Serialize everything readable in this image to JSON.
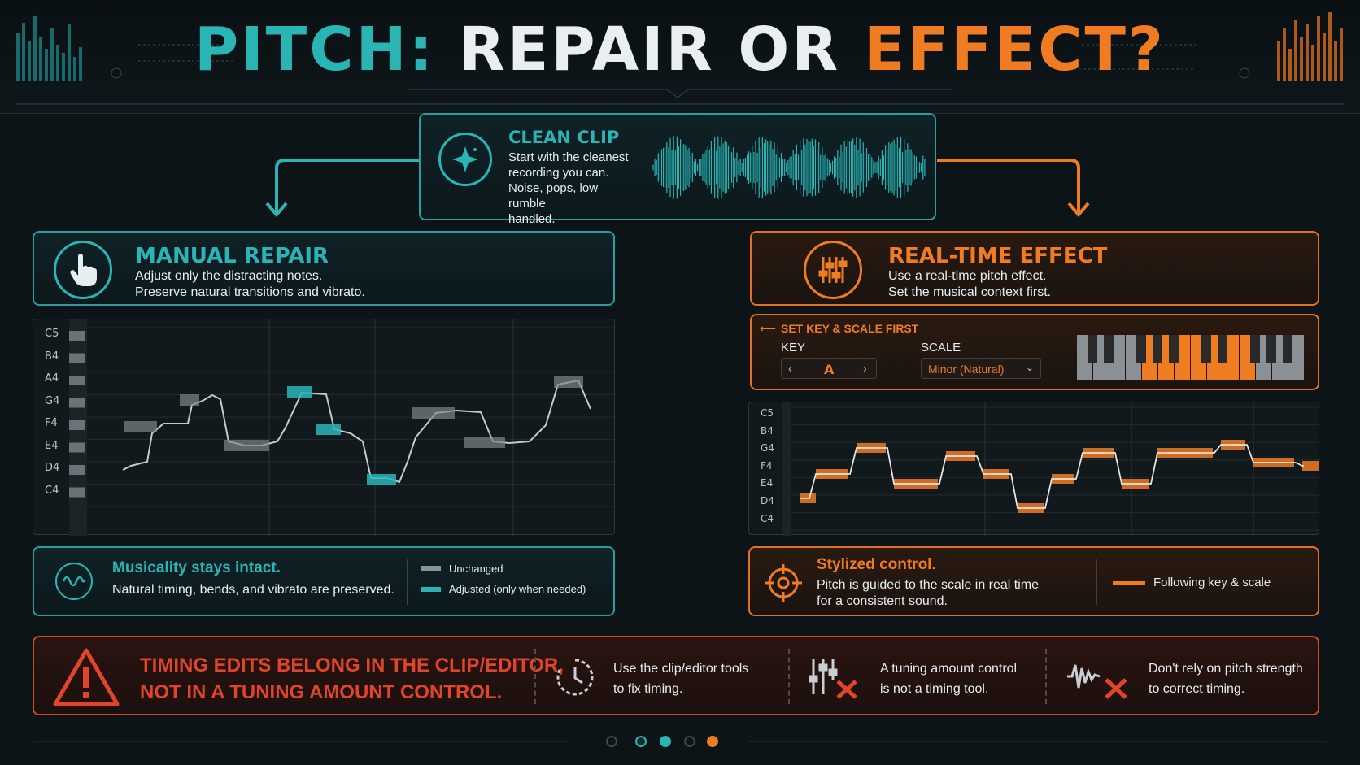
{
  "title": {
    "part1": "PITCH:",
    "part2": "REPAIR OR",
    "part3": "EFFECT?"
  },
  "clean_clip": {
    "title": "CLEAN CLIP",
    "lines": [
      "Start with the cleanest",
      "recording you can.",
      "Noise, pops, low rumble",
      "handled."
    ],
    "icon": "sparkle-icon"
  },
  "manual": {
    "title": "MANUAL REPAIR",
    "lines": [
      "Adjust only the distracting notes.",
      "Preserve natural transitions and vibrato."
    ],
    "icon": "hand-pointer-icon",
    "notes": [
      "C5",
      "B4",
      "A4",
      "G4",
      "F4",
      "E4",
      "D4",
      "C4"
    ],
    "footer_title": "Musicality stays intact.",
    "footer_text": "Natural timing, bends, and vibrato are preserved.",
    "legend_unchanged": "Unchanged",
    "legend_adjusted": "Adjusted (only when needed)"
  },
  "effect": {
    "title": "REAL-TIME EFFECT",
    "lines": [
      "Use a real-time pitch effect.",
      "Set the musical context first."
    ],
    "icon": "sliders-icon",
    "key_scale_title": "SET KEY & SCALE FIRST",
    "key_label": "KEY",
    "key_value": "A",
    "scale_label": "SCALE",
    "scale_value": "Minor (Natural)",
    "notes": [
      "C5",
      "B4",
      "G4",
      "F4",
      "E4",
      "D4",
      "C4"
    ],
    "footer_title": "Stylized control.",
    "footer_lines": [
      "Pitch is guided to the scale in real time",
      "for a consistent sound."
    ],
    "legend": "Following key & scale"
  },
  "warning": {
    "line1": "TIMING EDITS BELONG IN THE CLIP/EDITOR,",
    "line2": "NOT IN A TUNING AMOUNT CONTROL.",
    "tips": [
      {
        "icon": "clock-icon",
        "lines": [
          "Use the clip/editor tools",
          "to fix timing."
        ]
      },
      {
        "icon": "sliders-x-icon",
        "lines": [
          "A tuning amount control",
          "is not a timing tool."
        ]
      },
      {
        "icon": "waveform-x-icon",
        "lines": [
          "Don't rely on pitch strength",
          "to correct timing."
        ]
      }
    ]
  },
  "colors": {
    "teal": "#2ab5b5",
    "orange": "#f07c22",
    "red": "#e0442a",
    "bg": "#0c1418"
  }
}
